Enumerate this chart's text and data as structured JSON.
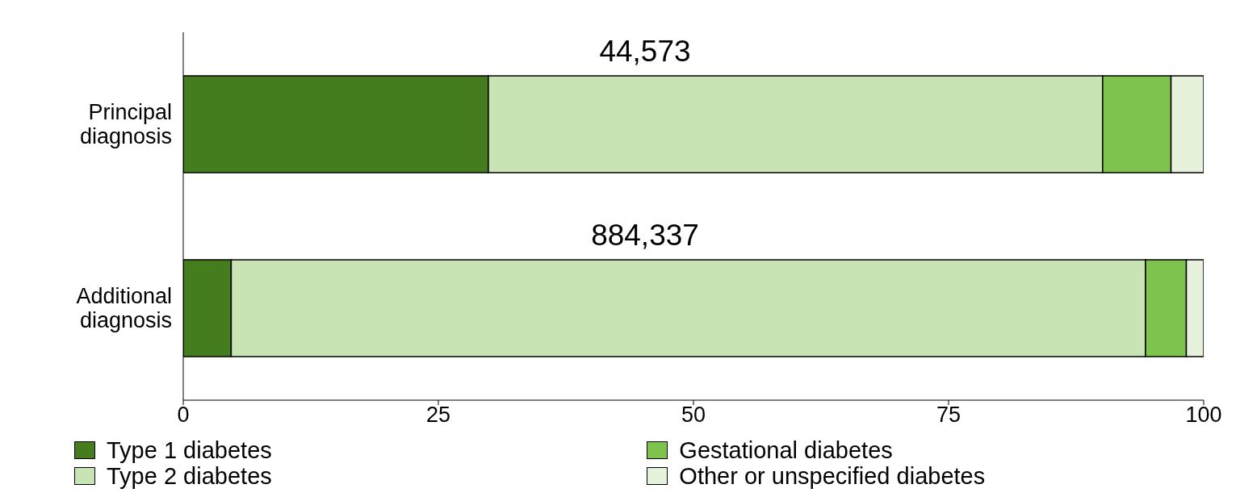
{
  "chart_data": {
    "type": "bar",
    "orientation": "horizontal",
    "stacked": true,
    "categories": [
      "Principal diagnosis",
      "Additional diagnosis"
    ],
    "series": [
      {
        "name": "Type 1 diabetes",
        "color": "#457c1e",
        "values": [
          29.9,
          4.7
        ]
      },
      {
        "name": "Type 2 diabetes",
        "color": "#c8e4b4",
        "values": [
          60.2,
          89.6
        ]
      },
      {
        "name": "Gestational diabetes",
        "color": "#7fc34f",
        "values": [
          6.7,
          4.0
        ]
      },
      {
        "name": "Other or unspecified diabetes",
        "color": "#e6f2dc",
        "values": [
          3.2,
          1.7
        ]
      }
    ],
    "annotations": [
      "44,573",
      "884,337"
    ],
    "xlim": [
      0,
      100
    ],
    "xticks": [
      0,
      25,
      50,
      75,
      100
    ],
    "legend": "bottom"
  }
}
